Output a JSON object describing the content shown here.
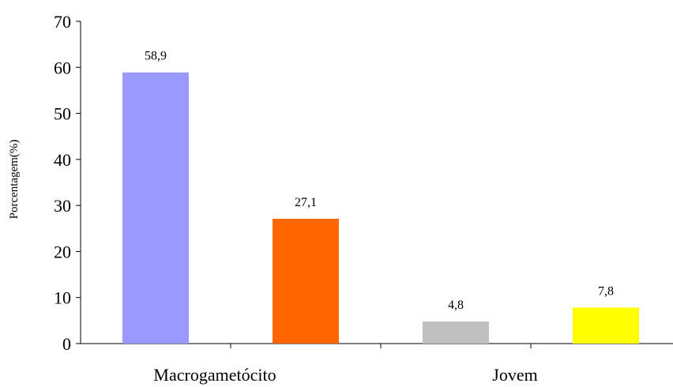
{
  "chart_data": {
    "type": "bar",
    "categories": [
      "Macrogametócito",
      "",
      "Jovem",
      ""
    ],
    "values": [
      58.9,
      27.1,
      4.8,
      7.8
    ],
    "data_labels": [
      "58,9",
      "27,1",
      "4,8",
      "7,8"
    ],
    "colors": [
      "#9999FF",
      "#FF6600",
      "#C0C0C0",
      "#FFFF00"
    ],
    "title": "",
    "xlabel": "",
    "ylabel": "Porcentagem(%)",
    "ylim": [
      0,
      70
    ],
    "yticks": [
      0,
      10,
      20,
      30,
      40,
      50,
      60,
      70
    ],
    "grid": false,
    "legend": "none"
  }
}
